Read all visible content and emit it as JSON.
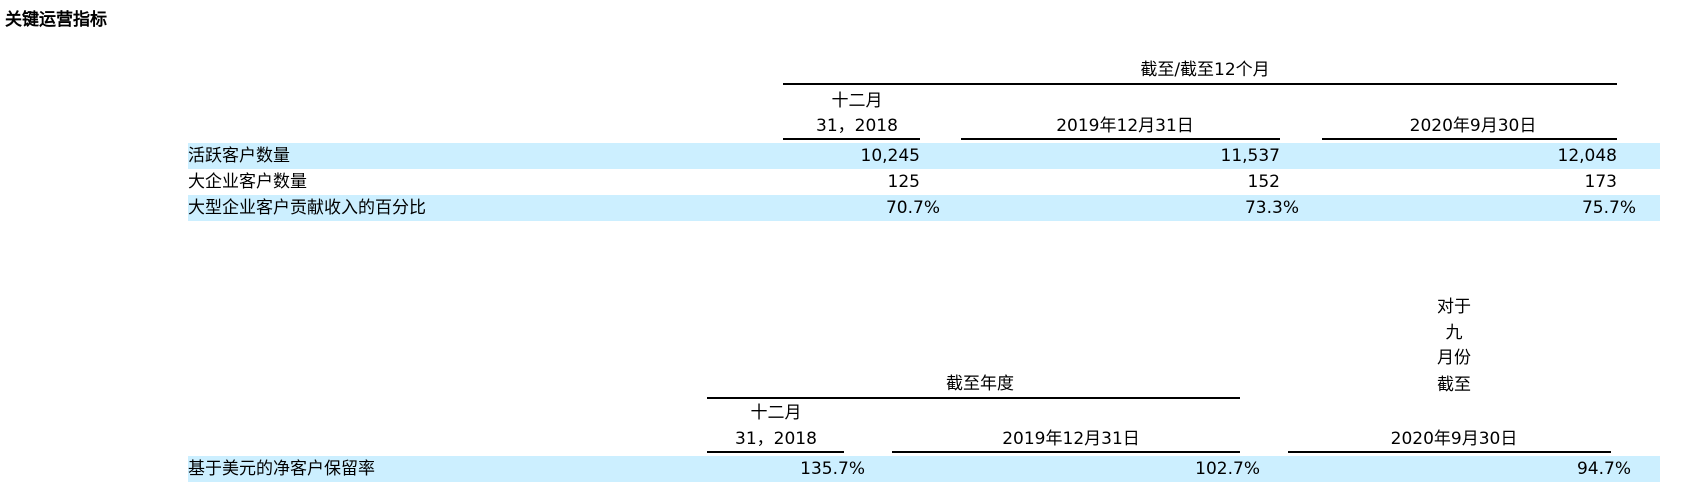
{
  "title": "关键运营指标",
  "table1": {
    "group_header": "截至/截至12个月",
    "columns": [
      [
        "十二月",
        "31，2018"
      ],
      [
        "2019年12月31日"
      ],
      [
        "2020年9月30日"
      ]
    ],
    "rows": [
      {
        "label": "活跃客户数量",
        "values": [
          "10,245",
          "11,537",
          "12,048"
        ]
      },
      {
        "label": "大企业客户数量",
        "values": [
          "125",
          "152",
          "173"
        ]
      },
      {
        "label": "大型企业客户贡献收入的百分比",
        "values": [
          "70.7%",
          "73.3%",
          "75.7%"
        ]
      }
    ]
  },
  "table2": {
    "group_header": "截至年度",
    "columns": [
      [
        "十二月",
        "31，2018"
      ],
      [
        "2019年12月31日"
      ],
      [
        "对于",
        "九",
        "月份",
        "截至",
        "2020年9月30日"
      ]
    ],
    "rows": [
      {
        "label": "基于美元的净客户保留率",
        "values": [
          "135.7%",
          "102.7%",
          "94.7%"
        ]
      }
    ]
  }
}
